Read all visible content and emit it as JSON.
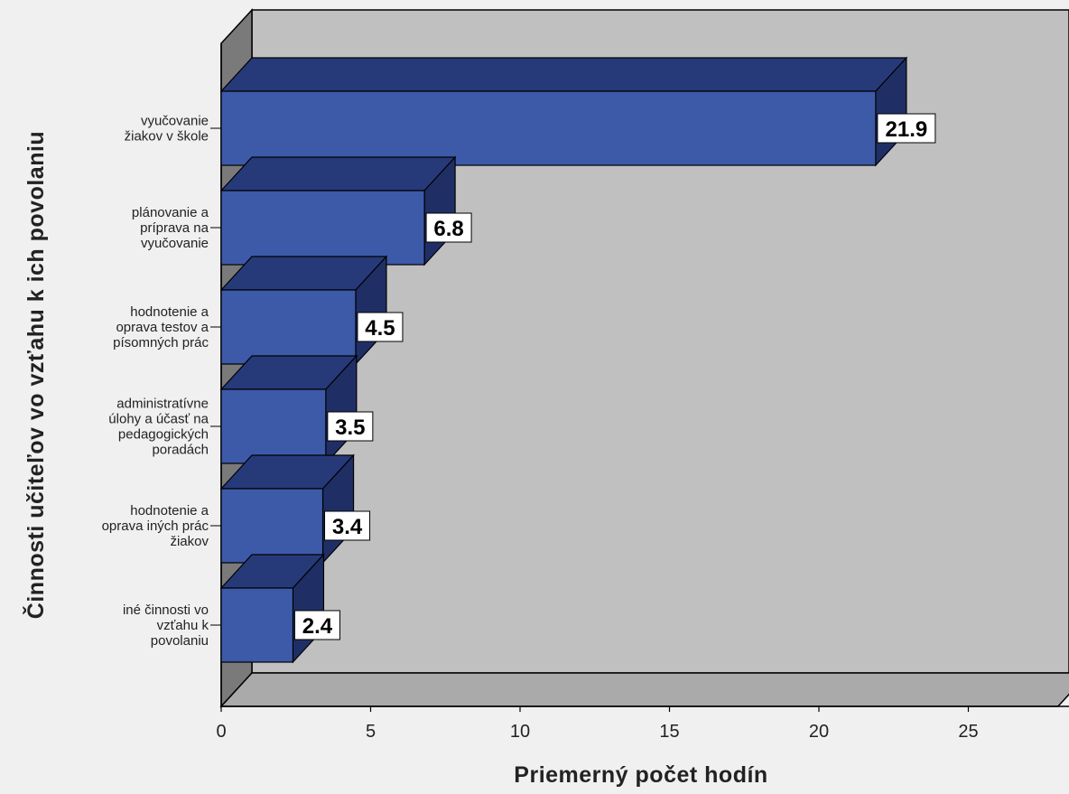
{
  "chart_data": {
    "type": "bar",
    "orientation": "horizontal",
    "style": "3d",
    "categories": [
      [
        "vyučovanie",
        "žiakov v škole"
      ],
      [
        "plánovanie a",
        "príprava na",
        "vyučovanie"
      ],
      [
        "hodnotenie a",
        "oprava testov a",
        "písomných prác"
      ],
      [
        "administratívne",
        "úlohy a účasť na",
        "pedagogických",
        "poradách"
      ],
      [
        "hodnotenie a",
        "oprava iných prác",
        "žiakov"
      ],
      [
        "iné činnosti vo",
        "vzťahu k",
        "povolaniu"
      ]
    ],
    "values": [
      21.9,
      6.8,
      4.5,
      3.5,
      3.4,
      2.4
    ],
    "data_labels": [
      "21.9",
      "6.8",
      "4.5",
      "3.5",
      "3.4",
      "2.4"
    ],
    "xlabel": "Priemerný počet hodín",
    "ylabel": "Činnosti učiteľov vo vzťahu k ich povolaniu",
    "x_ticks": [
      "0",
      "5",
      "10",
      "15",
      "20",
      "25"
    ],
    "xlim": [
      0,
      28
    ],
    "grid": false,
    "legend": "none",
    "colors": {
      "bar_front": "#3d5aa8",
      "bar_top": "#263a7a",
      "bar_side": "#1f2f66",
      "plot_back": "#c0c0c0",
      "plot_floor": "#aaaaaa",
      "plot_left_wall": "#7a7a7a",
      "page_bg": "#f0f0f0"
    }
  }
}
